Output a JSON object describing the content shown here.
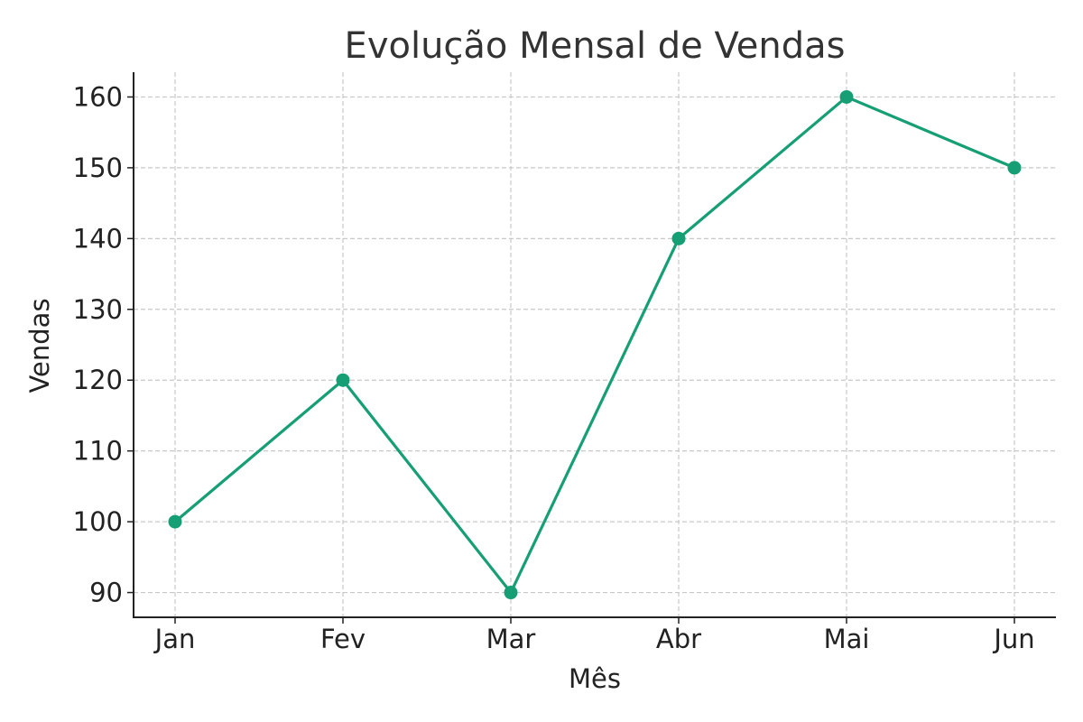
{
  "chart_data": {
    "type": "line",
    "title": "Evolução Mensal de Vendas",
    "xlabel": "Mês",
    "ylabel": "Vendas",
    "categories": [
      "Jan",
      "Fev",
      "Mar",
      "Abr",
      "Mai",
      "Jun"
    ],
    "series": [
      {
        "values": [
          100,
          120,
          90,
          140,
          160,
          150
        ],
        "color": "#169f74"
      }
    ],
    "yticks": [
      90,
      100,
      110,
      120,
      130,
      140,
      150,
      160
    ],
    "ylim": [
      86.5,
      163.5
    ],
    "grid": true,
    "markers": true
  }
}
